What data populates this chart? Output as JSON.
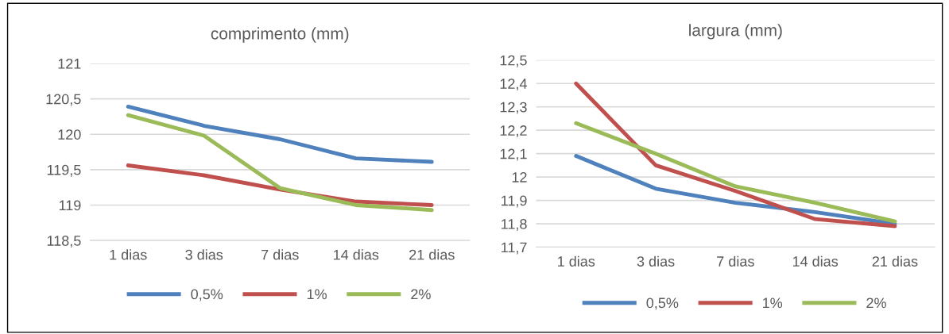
{
  "chart_data": [
    {
      "type": "line",
      "title": "comprimento (mm)",
      "categories": [
        "1 dias",
        "3 dias",
        "7 dias",
        "14 dias",
        "21 dias"
      ],
      "series": [
        {
          "name": "0,5%",
          "color": "#4f81bd",
          "values": [
            120.39,
            120.12,
            119.93,
            119.66,
            119.61
          ]
        },
        {
          "name": "1%",
          "color": "#c0504d",
          "values": [
            119.56,
            119.42,
            119.22,
            119.05,
            119.0
          ]
        },
        {
          "name": "2%",
          "color": "#9bbb59",
          "values": [
            120.27,
            119.98,
            119.24,
            119.0,
            118.93
          ]
        }
      ],
      "ylim": [
        118.5,
        121
      ],
      "yticks": [
        {
          "value": 118.5,
          "label": "118,5"
        },
        119,
        {
          "value": 119.5,
          "label": "119,5"
        },
        120,
        {
          "value": 120.5,
          "label": "120,5"
        },
        121
      ],
      "grid": "y",
      "legend": "bottom",
      "marker": "none",
      "line_style": "solid"
    },
    {
      "type": "line",
      "title": "largura (mm)",
      "categories": [
        "1 dias",
        "3 dias",
        "7 dias",
        "14 dias",
        "21 dias"
      ],
      "series": [
        {
          "name": "0,5%",
          "color": "#4f81bd",
          "values": [
            12.09,
            11.95,
            11.89,
            11.85,
            11.8
          ]
        },
        {
          "name": "1%",
          "color": "#c0504d",
          "values": [
            12.4,
            12.05,
            11.94,
            11.82,
            11.79
          ]
        },
        {
          "name": "2%",
          "color": "#9bbb59",
          "values": [
            12.23,
            12.1,
            11.96,
            11.89,
            11.81
          ]
        }
      ],
      "ylim": [
        11.7,
        12.5
      ],
      "yticks": [
        {
          "value": 11.7,
          "label": "11,7"
        },
        {
          "value": 11.8,
          "label": "11,8"
        },
        {
          "value": 11.9,
          "label": "11,9"
        },
        12,
        {
          "value": 12.1,
          "label": "12,1"
        },
        {
          "value": 12.2,
          "label": "12,2"
        },
        {
          "value": 12.3,
          "label": "12,3"
        },
        {
          "value": 12.4,
          "label": "12,4"
        },
        {
          "value": 12.5,
          "label": "12,5"
        }
      ],
      "grid": "y",
      "legend": "bottom",
      "marker": "none",
      "line_style": "solid"
    }
  ]
}
